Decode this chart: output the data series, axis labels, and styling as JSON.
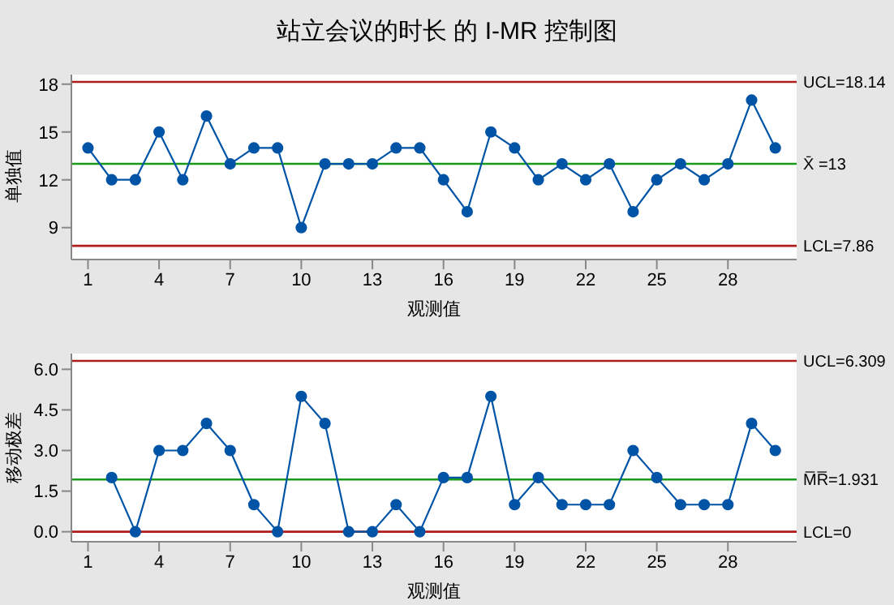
{
  "chart_data": [
    {
      "type": "line",
      "title": "站立会议的时长 的 I-MR 控制图",
      "xlabel": "观测值",
      "ylabel": "单独值",
      "x": [
        1,
        2,
        3,
        4,
        5,
        6,
        7,
        8,
        9,
        10,
        11,
        12,
        13,
        14,
        15,
        16,
        17,
        18,
        19,
        20,
        21,
        22,
        23,
        24,
        25,
        26,
        27,
        28,
        29,
        30
      ],
      "series": [
        {
          "color": "#0054a6",
          "values": [
            14,
            12,
            12,
            15,
            12,
            16,
            13,
            14,
            14,
            9,
            13,
            13,
            13,
            14,
            14,
            12,
            10,
            15,
            14,
            12,
            13,
            12,
            13,
            10,
            12,
            13,
            12,
            13,
            17,
            14
          ]
        }
      ],
      "xlim": [
        0.3,
        30.9
      ],
      "xticks": [
        1,
        4,
        7,
        10,
        13,
        16,
        19,
        22,
        25,
        28
      ],
      "ylim": [
        7,
        18.6
      ],
      "yticks": [
        9,
        12,
        15,
        18
      ],
      "ref_lines": [
        {
          "axis": "y",
          "value": 18.14,
          "label": "UCL=18.14",
          "color": "#b01c1c"
        },
        {
          "axis": "y",
          "value": 13,
          "label": "X̄ =13",
          "color": "#1a9a1a"
        },
        {
          "axis": "y",
          "value": 7.86,
          "label": "LCL=7.86",
          "color": "#b01c1c"
        }
      ],
      "marker": "circle",
      "grid": false,
      "legend": false
    },
    {
      "type": "line",
      "xlabel": "观测值",
      "ylabel": "移动极差",
      "x": [
        2,
        3,
        4,
        5,
        6,
        7,
        8,
        9,
        10,
        11,
        12,
        13,
        14,
        15,
        16,
        17,
        18,
        19,
        20,
        21,
        22,
        23,
        24,
        25,
        26,
        27,
        28,
        29,
        30
      ],
      "series": [
        {
          "color": "#0054a6",
          "values": [
            2,
            0,
            3,
            3,
            4,
            3,
            1,
            0,
            5,
            4,
            0,
            0,
            1,
            0,
            2,
            2,
            5,
            1,
            2,
            1,
            1,
            1,
            3,
            2,
            1,
            1,
            1,
            4,
            3
          ]
        }
      ],
      "xlim": [
        0.3,
        30.9
      ],
      "xticks": [
        1,
        4,
        7,
        10,
        13,
        16,
        19,
        22,
        25,
        28
      ],
      "ylim": [
        -0.37,
        6.58
      ],
      "yticks": [
        {
          "value": 0,
          "label": "0.0"
        },
        1.5,
        {
          "value": 3,
          "label": "3.0"
        },
        4.5,
        {
          "value": 6,
          "label": "6.0"
        }
      ],
      "ref_lines": [
        {
          "axis": "y",
          "value": 6.309,
          "label": "UCL=6.309",
          "color": "#b01c1c"
        },
        {
          "axis": "y",
          "value": 1.931,
          "label": "M̅R̅=1.931",
          "color": "#1a9a1a"
        },
        {
          "axis": "y",
          "value": 0,
          "label": "LCL=0",
          "color": "#b01c1c"
        }
      ],
      "marker": "circle",
      "grid": false,
      "legend": false
    }
  ]
}
